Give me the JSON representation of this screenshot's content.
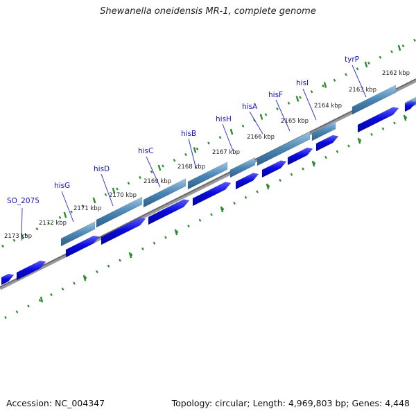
{
  "header": {
    "title": "Shewanella oneidensis MR-1, complete genome"
  },
  "footer": {
    "accession": "Accession: NC_004347",
    "summary": "Topology: circular; Length: 4,969,803 bp; Genes: 4,448"
  },
  "colors": {
    "gene_label": "#1010c8",
    "tick": "#2e8b2e",
    "backbone": "#808080",
    "cds_dark": "#0a0adc",
    "cds_light": "#4a86b4"
  },
  "ruler": {
    "kbp_labels": [
      "2173 kbp",
      "2172 kbp",
      "2171 kbp",
      "2170 kbp",
      "2169 kbp",
      "2168 kbp",
      "2167 kbp",
      "2166 kbp",
      "2165 kbp",
      "2164 kbp",
      "2163 kbp",
      "2162 kbp"
    ]
  },
  "genes": [
    "SO_2075",
    "hisG",
    "hisD",
    "hisC",
    "hisB",
    "hisH",
    "hisA",
    "hisF",
    "hisI",
    "tyrP"
  ]
}
